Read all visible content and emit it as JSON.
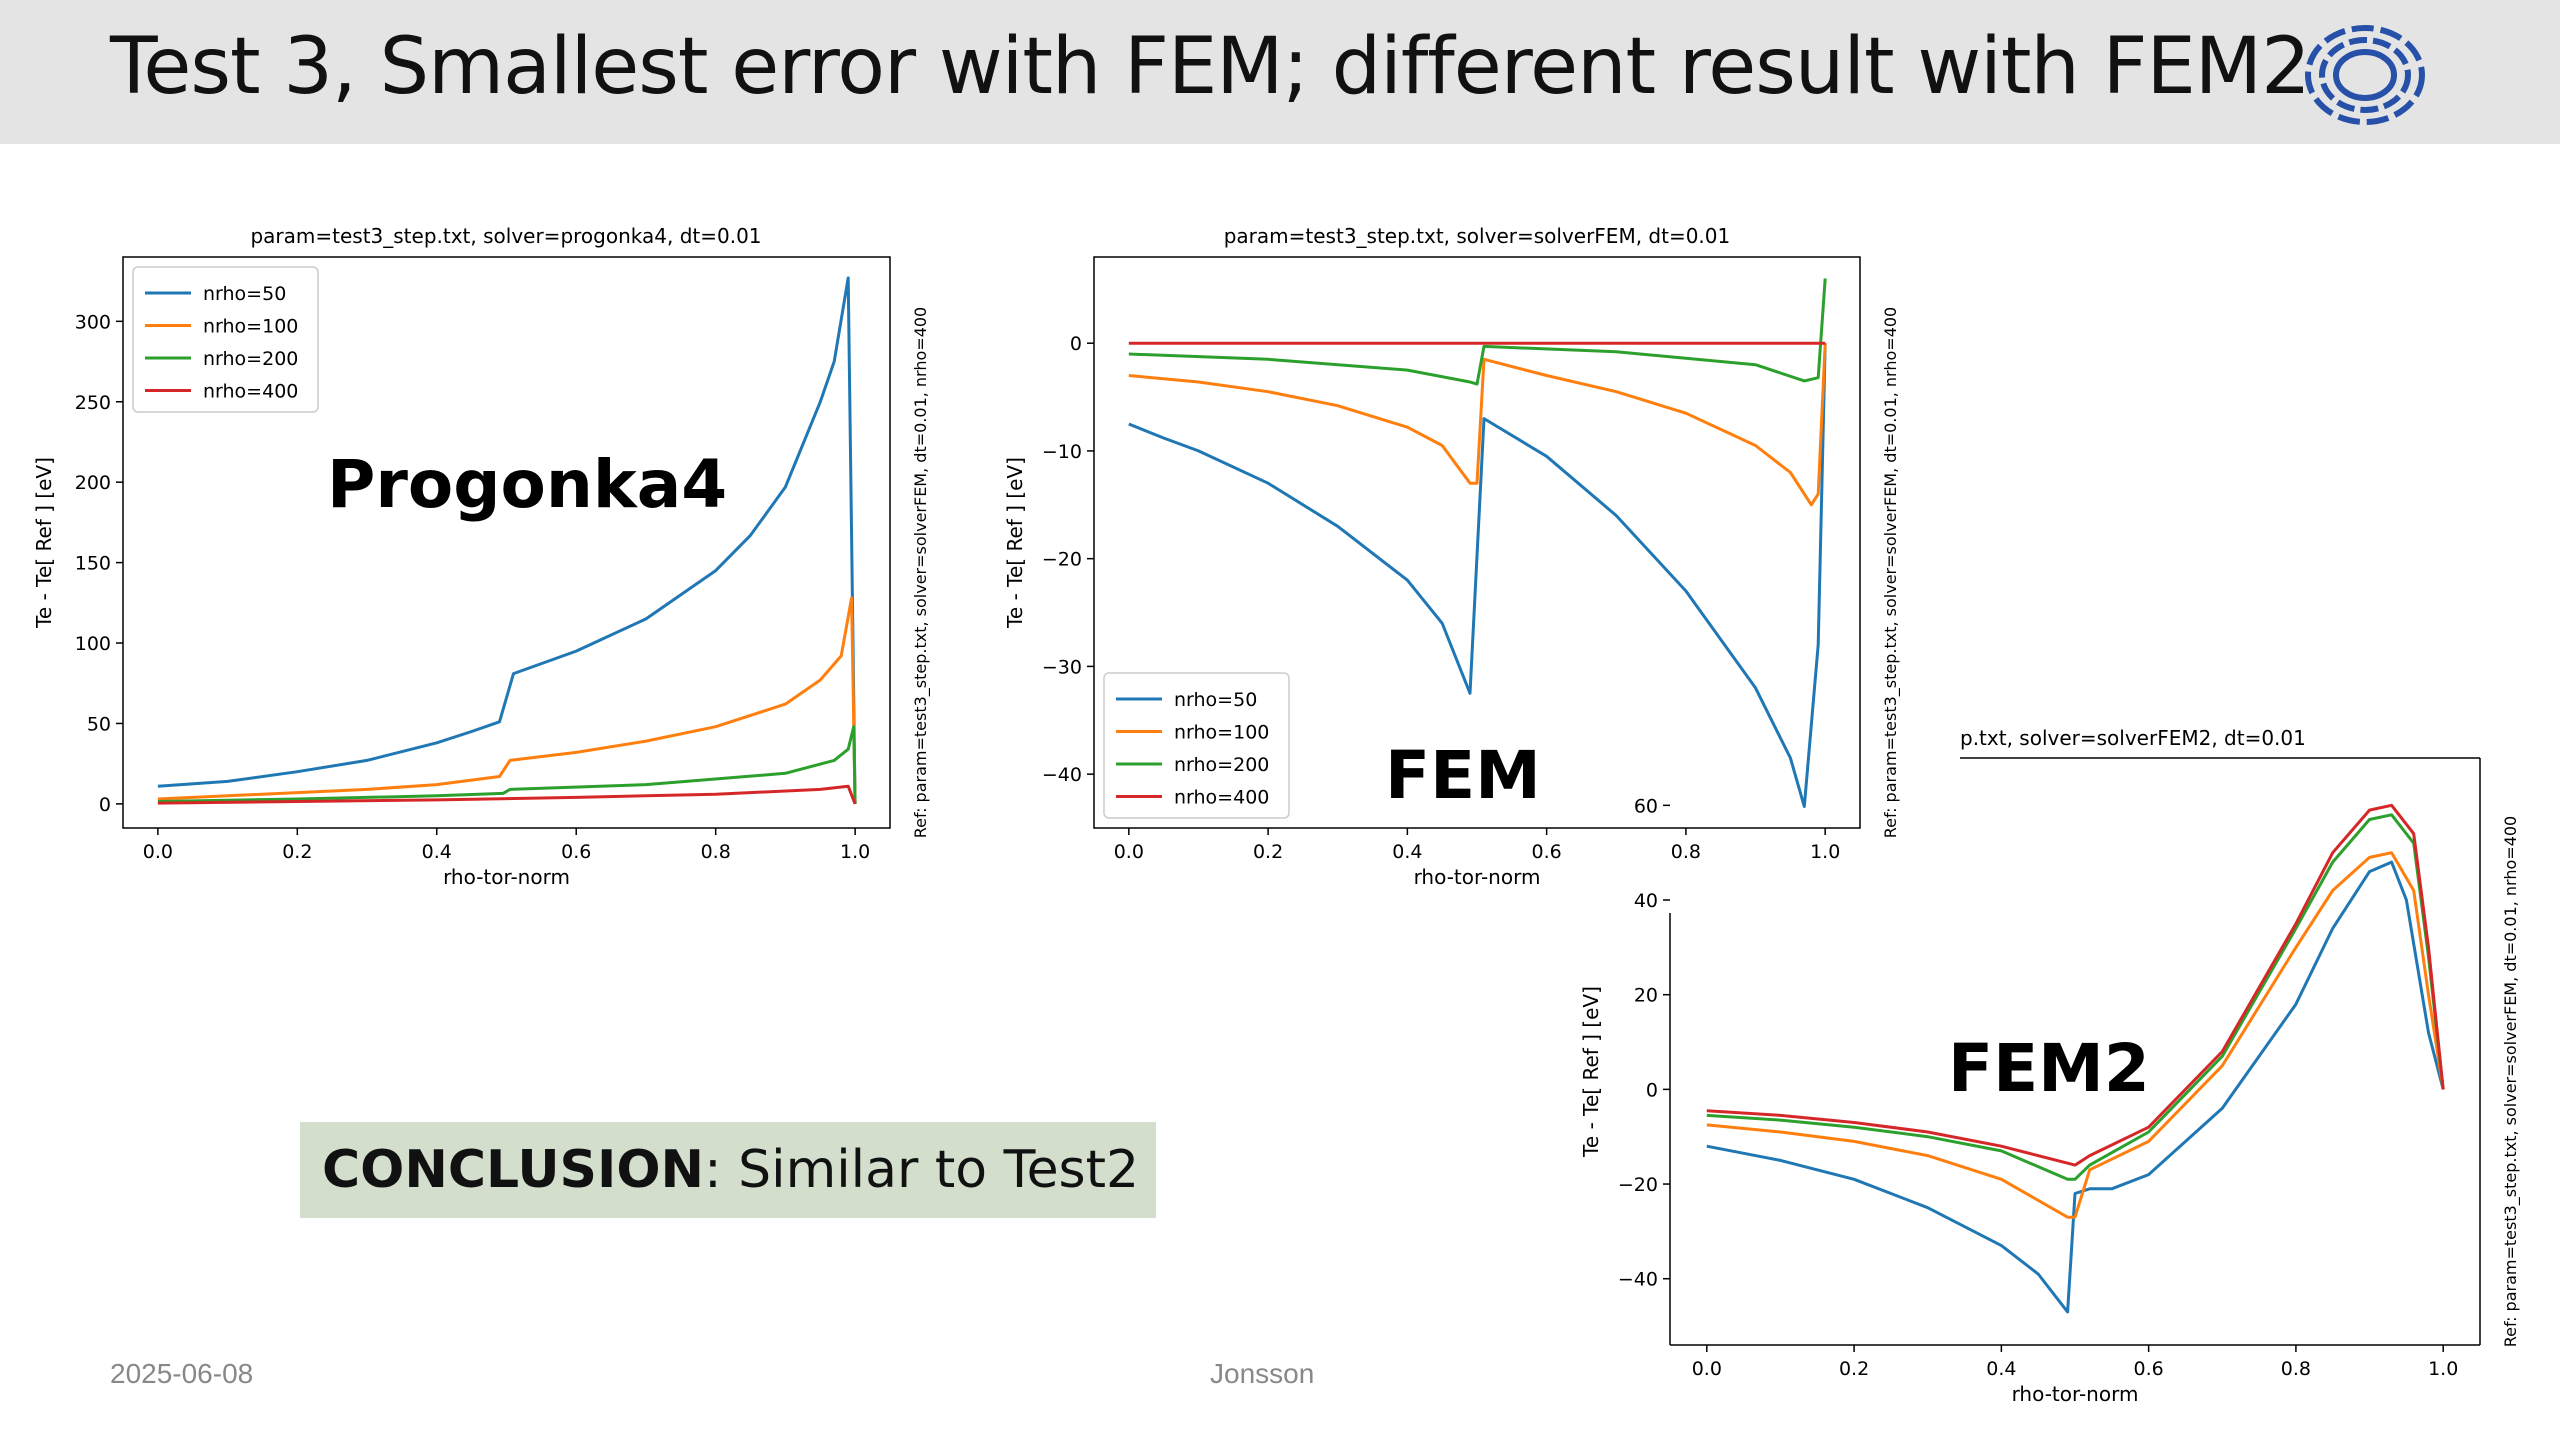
{
  "slide": {
    "title": "Test 3, Smallest error with FEM; different result with FEM2",
    "logo_icon": "concentric-rings-logo-icon",
    "date": "2025-06-08",
    "author": "Jonsson",
    "conclusion_label": "CONCLUSION",
    "conclusion_text": ": Similar to Test2",
    "overlay_labels": [
      "Progonka4",
      "FEM",
      "FEM2"
    ]
  },
  "colors": {
    "title_bar": "#e4e4e4",
    "conclusion_box": "#d3dfcc",
    "nrho50": "#1f77b4",
    "nrho100": "#ff7f0e",
    "nrho200": "#2ca02c",
    "nrho400": "#d62728"
  },
  "chart_data": [
    {
      "type": "line",
      "title": "param=test3_step.txt, solver=progonka4, dt=0.01",
      "xlabel": "rho-tor-norm",
      "ylabel": "Te - Te[ Ref ] [eV]",
      "side_label": "Ref: param=test3_step.txt, solver=solverFEM, dt=0.01, nrho=400",
      "xlim": [
        -0.05,
        1.05
      ],
      "ylim": [
        -15,
        340
      ],
      "xticks": [
        0.0,
        0.2,
        0.4,
        0.6,
        0.8,
        1.0
      ],
      "xtick_labels": [
        "0.0",
        "0.2",
        "0.4",
        "0.6",
        "0.8",
        "1.0"
      ],
      "yticks": [
        0,
        50,
        100,
        150,
        200,
        250,
        300
      ],
      "ytick_labels": [
        "0",
        "50",
        "100",
        "150",
        "200",
        "250",
        "300"
      ],
      "legend": "upper-left",
      "series": [
        {
          "name": "nrho=50",
          "x": [
            0.0,
            0.1,
            0.2,
            0.3,
            0.4,
            0.45,
            0.49,
            0.51,
            0.6,
            0.7,
            0.8,
            0.85,
            0.9,
            0.95,
            0.97,
            0.99,
            1.0
          ],
          "y": [
            11,
            14,
            20,
            27,
            38,
            45,
            51,
            81,
            95,
            115,
            145,
            167,
            197,
            250,
            275,
            327,
            0
          ]
        },
        {
          "name": "nrho=100",
          "x": [
            0.0,
            0.1,
            0.2,
            0.3,
            0.4,
            0.49,
            0.505,
            0.6,
            0.7,
            0.8,
            0.9,
            0.95,
            0.98,
            0.995,
            1.0
          ],
          "y": [
            3,
            5,
            7,
            9,
            12,
            17,
            27,
            32,
            39,
            48,
            62,
            77,
            92,
            128,
            0
          ]
        },
        {
          "name": "nrho=200",
          "x": [
            0.0,
            0.2,
            0.4,
            0.495,
            0.505,
            0.7,
            0.9,
            0.97,
            0.99,
            0.998,
            1.0
          ],
          "y": [
            1.5,
            3,
            5,
            6.5,
            9,
            12,
            19,
            27,
            34,
            48,
            0
          ]
        },
        {
          "name": "nrho=400",
          "x": [
            0.0,
            0.2,
            0.4,
            0.6,
            0.8,
            0.95,
            0.99,
            1.0
          ],
          "y": [
            0.5,
            1.5,
            2.5,
            4,
            6,
            9,
            11,
            0
          ]
        }
      ]
    },
    {
      "type": "line",
      "title": "param=test3_step.txt, solver=solverFEM, dt=0.01",
      "xlabel": "rho-tor-norm",
      "ylabel": "Te - Te[ Ref ] [eV]",
      "side_label": "Ref: param=test3_step.txt, solver=solverFEM, dt=0.01, nrho=400",
      "xlim": [
        -0.05,
        1.05
      ],
      "ylim": [
        -45,
        8
      ],
      "xticks": [
        0.0,
        0.2,
        0.4,
        0.6,
        0.8,
        1.0
      ],
      "xtick_labels": [
        "0.0",
        "0.2",
        "0.4",
        "0.6",
        "0.8",
        "1.0"
      ],
      "yticks": [
        0,
        -10,
        -20,
        -30,
        -40
      ],
      "ytick_labels": [
        "0",
        "−10",
        "−20",
        "−30",
        "−40"
      ],
      "legend": "lower-left",
      "series": [
        {
          "name": "nrho=50",
          "x": [
            0.0,
            0.05,
            0.1,
            0.2,
            0.3,
            0.4,
            0.45,
            0.49,
            0.51,
            0.6,
            0.7,
            0.8,
            0.9,
            0.95,
            0.97,
            0.99,
            1.0
          ],
          "y": [
            -7.5,
            -8.8,
            -10,
            -13,
            -17,
            -22,
            -26,
            -32.5,
            -7,
            -10.5,
            -16,
            -23,
            -32,
            -38.5,
            -43,
            -28,
            0
          ]
        },
        {
          "name": "nrho=100",
          "x": [
            0.0,
            0.1,
            0.2,
            0.3,
            0.4,
            0.45,
            0.49,
            0.5,
            0.51,
            0.6,
            0.7,
            0.8,
            0.9,
            0.95,
            0.98,
            0.99,
            1.0
          ],
          "y": [
            -3,
            -3.6,
            -4.5,
            -5.8,
            -7.8,
            -9.5,
            -13,
            -13,
            -1.5,
            -3,
            -4.5,
            -6.5,
            -9.5,
            -12,
            -15,
            -14,
            0
          ]
        },
        {
          "name": "nrho=200",
          "x": [
            0.0,
            0.2,
            0.4,
            0.49,
            0.5,
            0.51,
            0.7,
            0.9,
            0.97,
            0.99,
            1.0
          ],
          "y": [
            -1,
            -1.5,
            -2.5,
            -3.6,
            -3.8,
            -0.3,
            -0.8,
            -2,
            -3.5,
            -3.2,
            6
          ]
        },
        {
          "name": "nrho=400",
          "x": [
            0.0,
            0.5,
            1.0
          ],
          "y": [
            0,
            0,
            0
          ]
        }
      ]
    },
    {
      "type": "line",
      "title": "p.txt, solver=solverFEM2, dt=0.01",
      "xlabel": "rho-tor-norm",
      "ylabel": "Te - Te[ Ref ] [eV]",
      "side_label": "Ref: param=test3_step.txt, solver=solverFEM, dt=0.01, nrho=400",
      "xlim": [
        -0.05,
        1.05
      ],
      "ylim": [
        -54,
        70
      ],
      "xticks": [
        0.0,
        0.2,
        0.4,
        0.6,
        0.8,
        1.0
      ],
      "xtick_labels": [
        "0.0",
        "0.2",
        "0.4",
        "0.6",
        "0.8",
        "1.0"
      ],
      "yticks": [
        60,
        40,
        20,
        0,
        -20,
        -40
      ],
      "ytick_labels": [
        "60",
        "40",
        "20",
        "0",
        "−20",
        "−40"
      ],
      "legend": "none",
      "series": [
        {
          "name": "nrho=50",
          "x": [
            0.0,
            0.1,
            0.2,
            0.3,
            0.4,
            0.45,
            0.49,
            0.5,
            0.52,
            0.55,
            0.6,
            0.7,
            0.8,
            0.85,
            0.9,
            0.93,
            0.95,
            0.98,
            1.0
          ],
          "y": [
            -12,
            -15,
            -19,
            -25,
            -33,
            -39,
            -47,
            -22,
            -21,
            -21,
            -18,
            -4,
            18,
            34,
            46,
            48,
            40,
            12,
            0
          ]
        },
        {
          "name": "nrho=100",
          "x": [
            0.0,
            0.1,
            0.2,
            0.3,
            0.4,
            0.49,
            0.5,
            0.52,
            0.6,
            0.7,
            0.8,
            0.85,
            0.9,
            0.93,
            0.96,
            0.98,
            1.0
          ],
          "y": [
            -7.5,
            -9,
            -11,
            -14,
            -19,
            -27,
            -27,
            -17,
            -11,
            5,
            30,
            42,
            49,
            50,
            42,
            20,
            0
          ]
        },
        {
          "name": "nrho=200",
          "x": [
            0.0,
            0.1,
            0.2,
            0.3,
            0.4,
            0.49,
            0.5,
            0.52,
            0.6,
            0.7,
            0.8,
            0.85,
            0.9,
            0.93,
            0.96,
            0.98,
            1.0
          ],
          "y": [
            -5.5,
            -6.5,
            -8,
            -10,
            -13,
            -19,
            -19,
            -16,
            -9,
            7,
            34,
            48,
            57,
            58,
            52,
            28,
            0
          ]
        },
        {
          "name": "nrho=400",
          "x": [
            0.0,
            0.1,
            0.2,
            0.3,
            0.4,
            0.5,
            0.52,
            0.6,
            0.7,
            0.8,
            0.85,
            0.9,
            0.93,
            0.96,
            0.98,
            1.0
          ],
          "y": [
            -4.5,
            -5.5,
            -7,
            -9,
            -12,
            -16,
            -14,
            -8,
            8,
            35,
            50,
            59,
            60,
            54,
            30,
            0
          ]
        }
      ]
    }
  ]
}
